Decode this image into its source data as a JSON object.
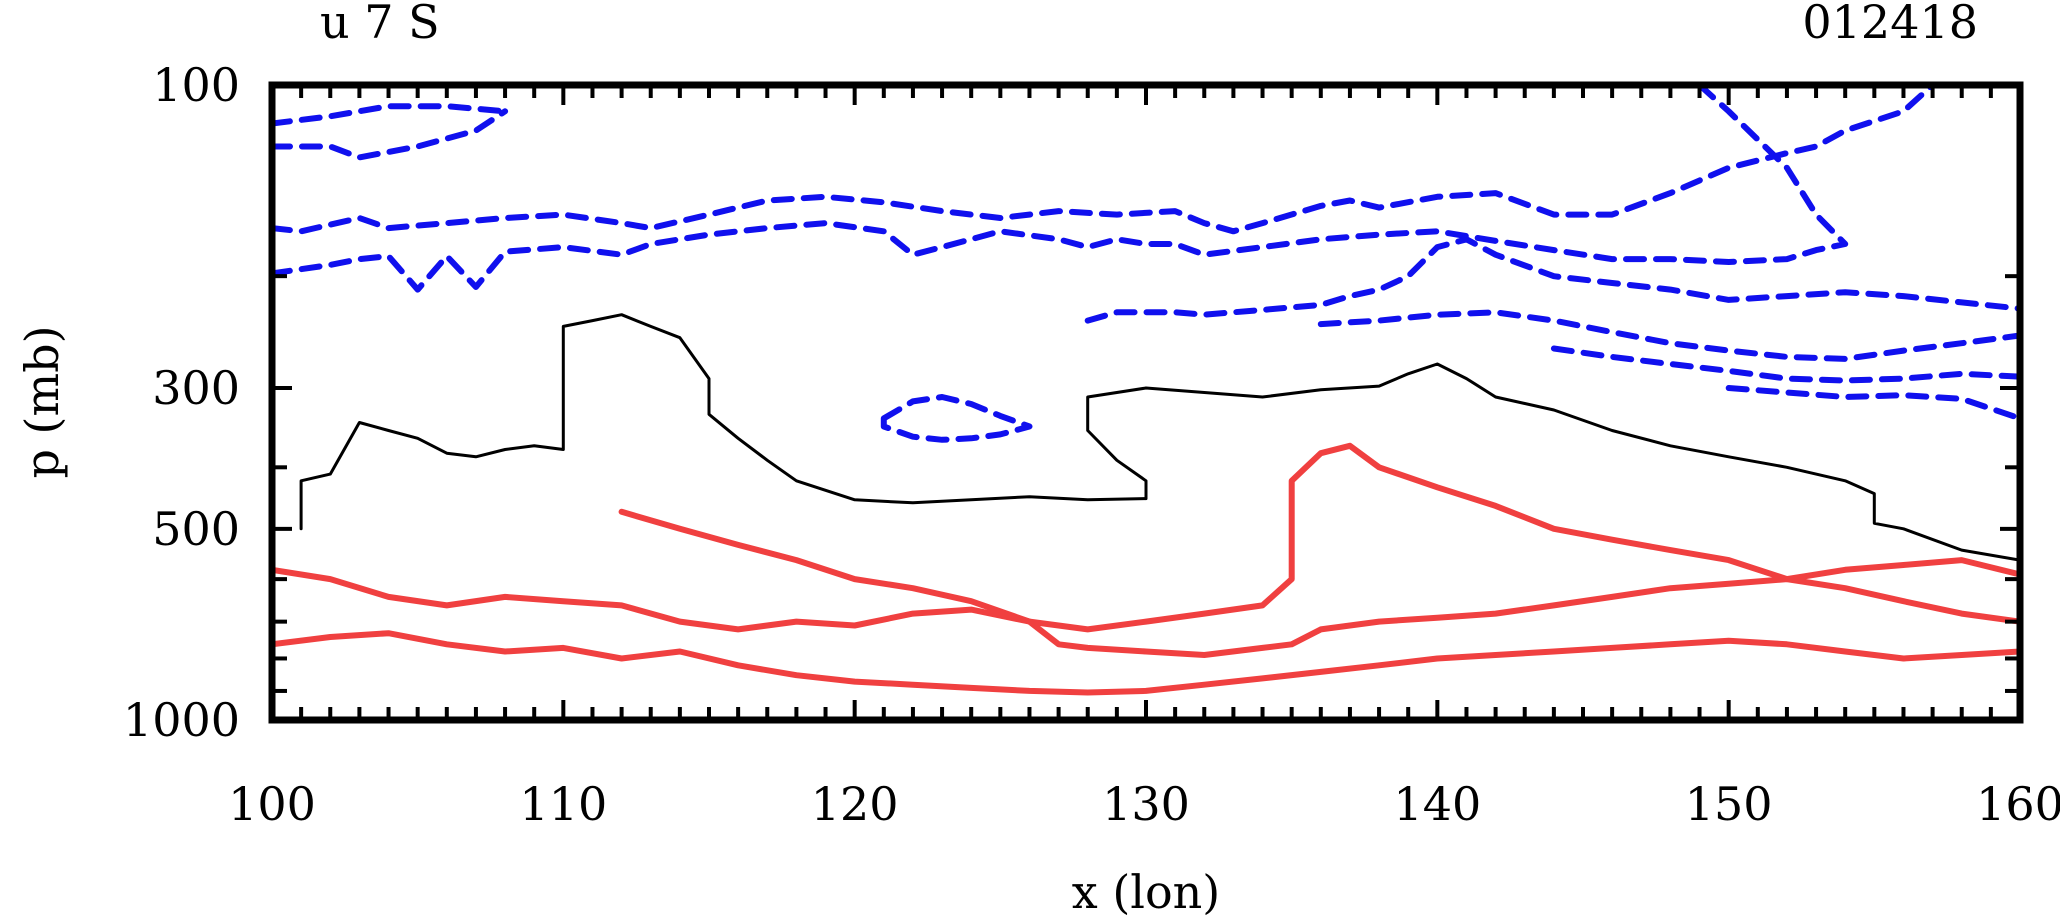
{
  "header": {
    "left_title": "u 7 S",
    "right_title": "012418"
  },
  "chart_data": {
    "type": "contour",
    "xlabel": "x (lon)",
    "ylabel": "p (mb)",
    "xlim": [
      100,
      160
    ],
    "ylim": [
      1000,
      100
    ],
    "x_ticks": [
      "100",
      "110",
      "120",
      "130",
      "140",
      "150",
      "160"
    ],
    "y_ticks": [
      "100",
      "300",
      "500",
      "1000"
    ],
    "y_scale": "log",
    "colors": {
      "negative": "#1010ee",
      "zero": "#000000",
      "positive": "#f04040"
    },
    "contours": [
      {
        "level": "negative",
        "style": "dashed",
        "points": [
          [
            100,
            115
          ],
          [
            102,
            112
          ],
          [
            104,
            108
          ],
          [
            106,
            108
          ],
          [
            108,
            110
          ]
        ]
      },
      {
        "level": "negative",
        "style": "dashed",
        "points": [
          [
            100,
            125
          ],
          [
            102,
            125
          ],
          [
            103,
            130
          ],
          [
            105,
            125
          ],
          [
            107,
            118
          ],
          [
            108,
            110
          ]
        ]
      },
      {
        "level": "negative",
        "style": "dashed",
        "points": [
          [
            100,
            168
          ],
          [
            101,
            170
          ],
          [
            103,
            162
          ],
          [
            104,
            168
          ],
          [
            106,
            165
          ],
          [
            108,
            162
          ],
          [
            110,
            160
          ],
          [
            112,
            165
          ],
          [
            113,
            168
          ],
          [
            115,
            160
          ],
          [
            117,
            152
          ],
          [
            119,
            150
          ],
          [
            121,
            153
          ],
          [
            123,
            158
          ],
          [
            125,
            162
          ],
          [
            127,
            158
          ],
          [
            129,
            160
          ],
          [
            131,
            158
          ],
          [
            132,
            165
          ],
          [
            133,
            170
          ],
          [
            134,
            165
          ],
          [
            136,
            155
          ],
          [
            137,
            152
          ],
          [
            138,
            156
          ],
          [
            140,
            150
          ],
          [
            142,
            148
          ],
          [
            144,
            160
          ],
          [
            146,
            160
          ],
          [
            148,
            148
          ],
          [
            150,
            135
          ],
          [
            152,
            128
          ],
          [
            153,
            125
          ],
          [
            154,
            118
          ],
          [
            156,
            110
          ],
          [
            157,
            100
          ]
        ]
      },
      {
        "level": "negative",
        "style": "dashed",
        "points": [
          [
            100,
            198
          ],
          [
            102,
            192
          ],
          [
            103,
            188
          ],
          [
            104,
            186
          ],
          [
            105,
            210
          ],
          [
            106,
            186
          ],
          [
            107,
            208
          ],
          [
            108,
            183
          ],
          [
            110,
            180
          ],
          [
            112,
            185
          ],
          [
            113,
            178
          ],
          [
            115,
            172
          ],
          [
            117,
            168
          ],
          [
            119,
            165
          ],
          [
            121,
            170
          ],
          [
            122,
            185
          ],
          [
            123,
            180
          ],
          [
            125,
            170
          ],
          [
            127,
            175
          ],
          [
            128,
            180
          ],
          [
            129,
            175
          ],
          [
            130,
            178
          ],
          [
            131,
            178
          ],
          [
            132,
            185
          ],
          [
            134,
            180
          ],
          [
            136,
            175
          ],
          [
            138,
            172
          ],
          [
            140,
            170
          ],
          [
            142,
            176
          ],
          [
            144,
            182
          ],
          [
            146,
            188
          ],
          [
            148,
            188
          ],
          [
            150,
            190
          ],
          [
            152,
            188
          ],
          [
            153,
            182
          ],
          [
            154,
            178
          ],
          [
            153,
            160
          ],
          [
            152,
            135
          ],
          [
            150,
            110
          ],
          [
            149,
            100
          ]
        ]
      },
      {
        "level": "negative",
        "style": "dashed",
        "points": [
          [
            128,
            235
          ],
          [
            129,
            228
          ],
          [
            131,
            228
          ],
          [
            132,
            230
          ],
          [
            134,
            226
          ],
          [
            136,
            222
          ],
          [
            137,
            215
          ],
          [
            138,
            210
          ],
          [
            139,
            200
          ],
          [
            140,
            180
          ],
          [
            141,
            175
          ],
          [
            142,
            185
          ],
          [
            144,
            200
          ],
          [
            146,
            205
          ],
          [
            148,
            210
          ],
          [
            150,
            218
          ],
          [
            152,
            215
          ],
          [
            154,
            212
          ],
          [
            156,
            215
          ],
          [
            158,
            220
          ],
          [
            160,
            225
          ]
        ]
      },
      {
        "level": "negative",
        "style": "dashed",
        "points": [
          [
            136,
            238
          ],
          [
            138,
            235
          ],
          [
            140,
            230
          ],
          [
            142,
            228
          ],
          [
            144,
            235
          ],
          [
            146,
            245
          ],
          [
            148,
            255
          ],
          [
            150,
            262
          ],
          [
            152,
            268
          ],
          [
            154,
            270
          ],
          [
            156,
            262
          ],
          [
            158,
            255
          ],
          [
            160,
            248
          ]
        ]
      },
      {
        "level": "negative",
        "style": "dashed",
        "points": [
          [
            144,
            260
          ],
          [
            146,
            268
          ],
          [
            148,
            275
          ],
          [
            150,
            282
          ],
          [
            152,
            290
          ],
          [
            154,
            292
          ],
          [
            156,
            290
          ],
          [
            158,
            285
          ],
          [
            160,
            288
          ]
        ]
      },
      {
        "level": "negative",
        "style": "dashed",
        "points": [
          [
            150,
            300
          ],
          [
            152,
            305
          ],
          [
            154,
            310
          ],
          [
            156,
            308
          ],
          [
            158,
            312
          ],
          [
            160,
            335
          ]
        ]
      },
      {
        "level": "negative",
        "style": "dashed",
        "points": [
          [
            121,
            335
          ],
          [
            122,
            315
          ],
          [
            123,
            310
          ],
          [
            124,
            318
          ],
          [
            125,
            332
          ],
          [
            126,
            345
          ],
          [
            125,
            355
          ],
          [
            124,
            360
          ],
          [
            123,
            362
          ],
          [
            122,
            358
          ],
          [
            121,
            345
          ],
          [
            121,
            335
          ]
        ]
      },
      {
        "level": "zero",
        "style": "solid",
        "points": [
          [
            101,
            500
          ],
          [
            101,
            420
          ],
          [
            102,
            410
          ],
          [
            103,
            340
          ],
          [
            104,
            350
          ],
          [
            105,
            360
          ],
          [
            106,
            380
          ],
          [
            107,
            385
          ],
          [
            108,
            375
          ],
          [
            109,
            370
          ],
          [
            110,
            375
          ],
          [
            110,
            240
          ],
          [
            111,
            235
          ],
          [
            112,
            230
          ],
          [
            113,
            240
          ],
          [
            114,
            250
          ],
          [
            115,
            290
          ],
          [
            115,
            330
          ],
          [
            116,
            360
          ],
          [
            117,
            390
          ],
          [
            118,
            420
          ],
          [
            120,
            450
          ],
          [
            122,
            455
          ],
          [
            124,
            450
          ],
          [
            126,
            445
          ],
          [
            128,
            450
          ],
          [
            130,
            448
          ],
          [
            130,
            420
          ],
          [
            129,
            390
          ],
          [
            128,
            350
          ],
          [
            128,
            310
          ],
          [
            130,
            300
          ],
          [
            132,
            305
          ],
          [
            134,
            310
          ],
          [
            136,
            302
          ],
          [
            138,
            298
          ],
          [
            139,
            285
          ],
          [
            140,
            275
          ],
          [
            141,
            290
          ],
          [
            142,
            310
          ],
          [
            144,
            325
          ],
          [
            146,
            350
          ],
          [
            148,
            370
          ],
          [
            150,
            385
          ],
          [
            152,
            400
          ],
          [
            154,
            420
          ],
          [
            155,
            440
          ],
          [
            155,
            490
          ],
          [
            156,
            500
          ],
          [
            158,
            540
          ],
          [
            160,
            560
          ]
        ]
      },
      {
        "level": "positive",
        "style": "solid",
        "points": [
          [
            100,
            580
          ],
          [
            102,
            600
          ],
          [
            104,
            640
          ],
          [
            106,
            660
          ],
          [
            108,
            640
          ],
          [
            110,
            650
          ],
          [
            112,
            660
          ],
          [
            114,
            700
          ],
          [
            116,
            720
          ],
          [
            118,
            700
          ],
          [
            120,
            710
          ],
          [
            122,
            680
          ],
          [
            124,
            670
          ],
          [
            126,
            700
          ],
          [
            127,
            760
          ],
          [
            128,
            770
          ],
          [
            130,
            780
          ],
          [
            132,
            790
          ],
          [
            134,
            770
          ],
          [
            135,
            760
          ],
          [
            136,
            720
          ],
          [
            138,
            700
          ],
          [
            140,
            690
          ],
          [
            142,
            680
          ],
          [
            144,
            660
          ],
          [
            146,
            640
          ],
          [
            148,
            620
          ],
          [
            150,
            610
          ],
          [
            152,
            600
          ],
          [
            154,
            580
          ],
          [
            156,
            570
          ],
          [
            158,
            560
          ],
          [
            160,
            590
          ]
        ]
      },
      {
        "level": "positive",
        "style": "solid",
        "points": [
          [
            100,
            760
          ],
          [
            102,
            740
          ],
          [
            104,
            730
          ],
          [
            106,
            760
          ],
          [
            108,
            780
          ],
          [
            110,
            770
          ],
          [
            112,
            800
          ],
          [
            114,
            780
          ],
          [
            116,
            820
          ],
          [
            118,
            850
          ],
          [
            120,
            870
          ],
          [
            122,
            880
          ],
          [
            124,
            890
          ],
          [
            126,
            900
          ],
          [
            128,
            905
          ],
          [
            130,
            900
          ],
          [
            132,
            880
          ],
          [
            134,
            860
          ],
          [
            136,
            840
          ],
          [
            138,
            820
          ],
          [
            140,
            800
          ],
          [
            142,
            790
          ],
          [
            144,
            780
          ],
          [
            146,
            770
          ],
          [
            148,
            760
          ],
          [
            150,
            750
          ],
          [
            152,
            760
          ],
          [
            154,
            780
          ],
          [
            156,
            800
          ],
          [
            158,
            790
          ],
          [
            160,
            780
          ]
        ]
      },
      {
        "level": "positive",
        "style": "solid",
        "points": [
          [
            112,
            470
          ],
          [
            114,
            500
          ],
          [
            116,
            530
          ],
          [
            118,
            560
          ],
          [
            120,
            600
          ],
          [
            122,
            620
          ],
          [
            124,
            650
          ],
          [
            126,
            700
          ],
          [
            128,
            720
          ],
          [
            130,
            700
          ],
          [
            132,
            680
          ],
          [
            134,
            660
          ],
          [
            135,
            600
          ],
          [
            135,
            420
          ],
          [
            136,
            380
          ],
          [
            137,
            370
          ],
          [
            138,
            400
          ],
          [
            140,
            430
          ],
          [
            142,
            460
          ],
          [
            144,
            500
          ],
          [
            146,
            520
          ],
          [
            148,
            540
          ],
          [
            150,
            560
          ],
          [
            152,
            600
          ],
          [
            154,
            620
          ],
          [
            156,
            650
          ],
          [
            158,
            680
          ],
          [
            160,
            700
          ]
        ]
      }
    ]
  }
}
